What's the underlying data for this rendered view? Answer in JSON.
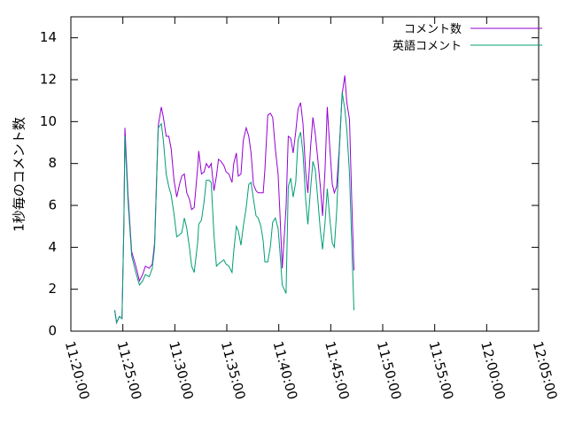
{
  "chart_data": {
    "type": "line",
    "title": "",
    "xlabel": "",
    "ylabel": "1秒毎のコメント数",
    "xlim": [
      "11:20:00",
      "12:05:00"
    ],
    "ylim": [
      0,
      15
    ],
    "x_ticks": [
      "11:20:00",
      "11:25:00",
      "11:30:00",
      "11:35:00",
      "11:40:00",
      "11:45:00",
      "11:50:00",
      "11:55:00",
      "12:00:00",
      "12:05:00"
    ],
    "y_ticks": [
      "0",
      "2",
      "4",
      "6",
      "8",
      "10",
      "12",
      "14"
    ],
    "legend_position": "top-right",
    "grid": false,
    "series": [
      {
        "name": "コメント数",
        "color": "#9400d3",
        "points": [
          [
            "11:24:13",
            1.0
          ],
          [
            "11:24:24",
            0.4
          ],
          [
            "11:24:40",
            0.7
          ],
          [
            "11:24:55",
            0.6
          ],
          [
            "11:25:06",
            5.0
          ],
          [
            "11:25:12",
            9.7
          ],
          [
            "11:25:30",
            6.5
          ],
          [
            "11:25:51",
            3.8
          ],
          [
            "11:26:15",
            3.1
          ],
          [
            "11:26:36",
            2.4
          ],
          [
            "11:26:54",
            2.7
          ],
          [
            "11:27:10",
            3.1
          ],
          [
            "11:27:32",
            3.0
          ],
          [
            "11:27:50",
            3.2
          ],
          [
            "11:28:03",
            4.2
          ],
          [
            "11:28:24",
            9.8
          ],
          [
            "11:28:42",
            10.7
          ],
          [
            "11:28:54",
            10.2
          ],
          [
            "11:29:10",
            9.3
          ],
          [
            "11:29:25",
            9.3
          ],
          [
            "11:29:39",
            8.7
          ],
          [
            "11:29:55",
            7.2
          ],
          [
            "11:30:11",
            6.4
          ],
          [
            "11:30:27",
            7.0
          ],
          [
            "11:30:40",
            7.4
          ],
          [
            "11:30:55",
            7.5
          ],
          [
            "11:31:09",
            6.6
          ],
          [
            "11:31:24",
            6.3
          ],
          [
            "11:31:37",
            5.8
          ],
          [
            "11:31:52",
            5.9
          ],
          [
            "11:32:13",
            7.9
          ],
          [
            "11:32:18",
            8.6
          ],
          [
            "11:32:34",
            7.5
          ],
          [
            "11:32:49",
            7.6
          ],
          [
            "11:33:02",
            8.0
          ],
          [
            "11:33:17",
            7.8
          ],
          [
            "11:33:30",
            8.0
          ],
          [
            "11:33:46",
            6.7
          ],
          [
            "11:34:00",
            7.4
          ],
          [
            "11:34:12",
            8.2
          ],
          [
            "11:34:27",
            8.1
          ],
          [
            "11:34:43",
            7.9
          ],
          [
            "11:34:56",
            7.6
          ],
          [
            "11:35:12",
            7.5
          ],
          [
            "11:35:30",
            7.1
          ],
          [
            "11:35:40",
            8.0
          ],
          [
            "11:35:55",
            8.5
          ],
          [
            "11:36:06",
            7.4
          ],
          [
            "11:36:22",
            7.5
          ],
          [
            "11:36:35",
            9.1
          ],
          [
            "11:36:52",
            9.7
          ],
          [
            "11:37:07",
            9.3
          ],
          [
            "11:37:20",
            8.5
          ],
          [
            "11:37:34",
            7.0
          ],
          [
            "11:37:49",
            6.7
          ],
          [
            "11:38:01",
            6.6
          ],
          [
            "11:38:17",
            6.6
          ],
          [
            "11:38:30",
            6.6
          ],
          [
            "11:38:40",
            7.7
          ],
          [
            "11:38:56",
            10.3
          ],
          [
            "11:39:11",
            10.4
          ],
          [
            "11:39:25",
            10.2
          ],
          [
            "11:39:40",
            8.7
          ],
          [
            "11:39:56",
            7.5
          ],
          [
            "11:40:06",
            5.8
          ],
          [
            "11:40:20",
            3.0
          ],
          [
            "11:40:42",
            5.9
          ],
          [
            "11:40:55",
            9.3
          ],
          [
            "11:41:09",
            9.2
          ],
          [
            "11:41:23",
            8.5
          ],
          [
            "11:41:38",
            9.5
          ],
          [
            "11:41:51",
            10.6
          ],
          [
            "11:42:06",
            10.9
          ],
          [
            "11:42:20",
            9.9
          ],
          [
            "11:42:35",
            7.6
          ],
          [
            "11:42:48",
            6.6
          ],
          [
            "11:43:04",
            8.8
          ],
          [
            "11:43:17",
            10.2
          ],
          [
            "11:43:31",
            9.4
          ],
          [
            "11:43:44",
            8.3
          ],
          [
            "11:44:00",
            6.9
          ],
          [
            "11:44:13",
            5.5
          ],
          [
            "11:44:27",
            7.7
          ],
          [
            "11:44:40",
            10.7
          ],
          [
            "11:44:54",
            8.8
          ],
          [
            "11:45:09",
            7.0
          ],
          [
            "11:45:21",
            6.6
          ],
          [
            "11:45:34",
            6.9
          ],
          [
            "11:45:49",
            8.7
          ],
          [
            "11:46:06",
            11.3
          ],
          [
            "11:46:21",
            12.2
          ],
          [
            "11:46:33",
            10.9
          ],
          [
            "11:46:48",
            10.1
          ],
          [
            "11:47:01",
            6.3
          ],
          [
            "11:47:14",
            2.9
          ]
        ]
      },
      {
        "name": "英語コメント",
        "color": "#009e73",
        "points": [
          [
            "11:24:13",
            1.0
          ],
          [
            "11:24:24",
            0.4
          ],
          [
            "11:24:40",
            0.7
          ],
          [
            "11:24:55",
            0.6
          ],
          [
            "11:25:06",
            5.0
          ],
          [
            "11:25:12",
            9.3
          ],
          [
            "11:25:30",
            6.2
          ],
          [
            "11:25:51",
            3.6
          ],
          [
            "11:26:15",
            2.8
          ],
          [
            "11:26:36",
            2.2
          ],
          [
            "11:26:54",
            2.4
          ],
          [
            "11:27:10",
            2.7
          ],
          [
            "11:27:32",
            2.6
          ],
          [
            "11:27:50",
            3.0
          ],
          [
            "11:28:03",
            4.0
          ],
          [
            "11:28:24",
            9.7
          ],
          [
            "11:28:42",
            9.9
          ],
          [
            "11:28:54",
            9.1
          ],
          [
            "11:29:10",
            7.5
          ],
          [
            "11:29:25",
            6.9
          ],
          [
            "11:29:39",
            6.5
          ],
          [
            "11:29:55",
            5.6
          ],
          [
            "11:30:11",
            4.5
          ],
          [
            "11:30:27",
            4.6
          ],
          [
            "11:30:40",
            4.7
          ],
          [
            "11:30:55",
            5.4
          ],
          [
            "11:31:09",
            4.9
          ],
          [
            "11:31:24",
            4.0
          ],
          [
            "11:31:37",
            3.1
          ],
          [
            "11:31:52",
            2.8
          ],
          [
            "11:32:13",
            4.3
          ],
          [
            "11:32:18",
            5.1
          ],
          [
            "11:32:34",
            5.3
          ],
          [
            "11:32:49",
            6.2
          ],
          [
            "11:33:02",
            7.2
          ],
          [
            "11:33:17",
            7.2
          ],
          [
            "11:33:30",
            7.1
          ],
          [
            "11:33:46",
            4.6
          ],
          [
            "11:34:00",
            3.1
          ],
          [
            "11:34:12",
            3.2
          ],
          [
            "11:34:27",
            3.3
          ],
          [
            "11:34:43",
            3.4
          ],
          [
            "11:34:56",
            3.2
          ],
          [
            "11:35:12",
            3.1
          ],
          [
            "11:35:30",
            2.8
          ],
          [
            "11:35:40",
            3.8
          ],
          [
            "11:35:55",
            5.0
          ],
          [
            "11:36:06",
            4.8
          ],
          [
            "11:36:22",
            4.1
          ],
          [
            "11:36:35",
            5.0
          ],
          [
            "11:36:52",
            5.9
          ],
          [
            "11:37:07",
            7.0
          ],
          [
            "11:37:20",
            7.1
          ],
          [
            "11:37:34",
            6.3
          ],
          [
            "11:37:49",
            5.5
          ],
          [
            "11:38:01",
            5.4
          ],
          [
            "11:38:17",
            5.0
          ],
          [
            "11:38:30",
            4.3
          ],
          [
            "11:38:40",
            3.3
          ],
          [
            "11:38:56",
            3.3
          ],
          [
            "11:39:11",
            4.0
          ],
          [
            "11:39:25",
            5.2
          ],
          [
            "11:39:40",
            5.4
          ],
          [
            "11:39:56",
            4.9
          ],
          [
            "11:40:06",
            3.9
          ],
          [
            "11:40:20",
            2.2
          ],
          [
            "11:40:42",
            1.8
          ],
          [
            "11:40:55",
            6.9
          ],
          [
            "11:41:09",
            7.3
          ],
          [
            "11:41:23",
            6.4
          ],
          [
            "11:41:38",
            7.1
          ],
          [
            "11:41:51",
            9.1
          ],
          [
            "11:42:06",
            9.5
          ],
          [
            "11:42:20",
            8.5
          ],
          [
            "11:42:35",
            6.3
          ],
          [
            "11:42:48",
            5.1
          ],
          [
            "11:43:04",
            6.8
          ],
          [
            "11:43:17",
            8.1
          ],
          [
            "11:43:31",
            7.7
          ],
          [
            "11:43:44",
            6.4
          ],
          [
            "11:44:00",
            4.8
          ],
          [
            "11:44:13",
            3.9
          ],
          [
            "11:44:27",
            5.2
          ],
          [
            "11:44:40",
            6.8
          ],
          [
            "11:44:54",
            5.4
          ],
          [
            "11:45:09",
            4.2
          ],
          [
            "11:45:21",
            4.0
          ],
          [
            "11:45:34",
            5.7
          ],
          [
            "11:45:49",
            8.5
          ],
          [
            "11:46:06",
            11.4
          ],
          [
            "11:46:21",
            10.6
          ],
          [
            "11:46:33",
            9.6
          ],
          [
            "11:46:48",
            7.5
          ],
          [
            "11:47:01",
            4.2
          ],
          [
            "11:47:14",
            1.0
          ]
        ]
      }
    ]
  }
}
